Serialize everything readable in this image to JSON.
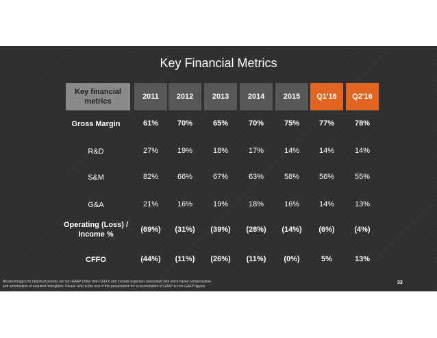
{
  "slide": {
    "title": "Key Financial Metrics",
    "page_number": "33",
    "footnote_line1": "All percentages for historical periods are non-GAAP (other than CFFO) and exclude expenses associated with stock based compensation",
    "footnote_line2": "and amortization of acquired intangibles. Please refer to the end of this presentation for a reconciliation of GAAP to non-GAAP figures."
  },
  "table": {
    "header_label": "Key financial metrics",
    "columns": [
      "2011",
      "2012",
      "2013",
      "2014",
      "2015",
      "Q1'16",
      "Q2'16"
    ],
    "rows": [
      {
        "label": "Gross Margin",
        "bold": true,
        "values": [
          "61%",
          "70%",
          "65%",
          "70%",
          "75%",
          "77%",
          "78%"
        ]
      },
      {
        "label": "R&D",
        "bold": false,
        "values": [
          "27%",
          "19%",
          "18%",
          "17%",
          "14%",
          "14%",
          "14%"
        ]
      },
      {
        "label": "S&M",
        "bold": false,
        "values": [
          "82%",
          "66%",
          "67%",
          "63%",
          "58%",
          "56%",
          "55%"
        ]
      },
      {
        "label": "G&A",
        "bold": false,
        "values": [
          "21%",
          "16%",
          "19%",
          "18%",
          "16%",
          "14%",
          "13%"
        ]
      },
      {
        "label": "Operating (Loss) / Income %",
        "bold": true,
        "values": [
          "(69%)",
          "(31%)",
          "(39%)",
          "(28%)",
          "(14%)",
          "(6%)",
          "(4%)"
        ]
      },
      {
        "label": "CFFO",
        "bold": true,
        "values": [
          "(44%)",
          "(11%)",
          "(26%)",
          "(11%)",
          "(0%)",
          "5%",
          "13%"
        ]
      }
    ]
  },
  "colors": {
    "slide_background": "#2f2f2f",
    "header_year_fill": "#575757",
    "header_quarter_fill": "#e1651f",
    "header_label_fill": "#8a8a8a"
  }
}
